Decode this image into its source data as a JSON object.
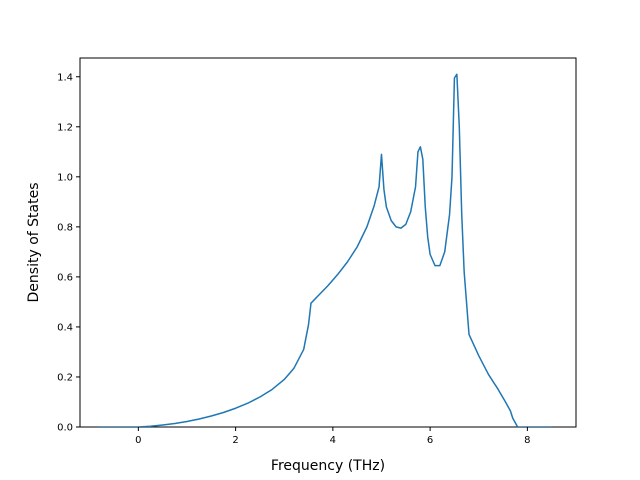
{
  "chart_data": {
    "type": "line",
    "title": "",
    "xlabel": "Frequency (THz)",
    "ylabel": "Density of States",
    "xlim": [
      -1.2,
      9.0
    ],
    "ylim": [
      0.0,
      1.475
    ],
    "xticks": [
      0,
      2,
      4,
      6,
      8
    ],
    "xtick_labels": [
      "0",
      "2",
      "4",
      "6",
      "8"
    ],
    "yticks": [
      0.0,
      0.2,
      0.4,
      0.6,
      0.8,
      1.0,
      1.2,
      1.4
    ],
    "ytick_labels": [
      "0.0",
      "0.2",
      "0.4",
      "0.6",
      "0.8",
      "1.0",
      "1.2",
      "1.4"
    ],
    "grid": false,
    "legend": "none",
    "series": [
      {
        "color": "#1f77b4",
        "x": [
          -0.8,
          -0.4,
          0.0,
          0.25,
          0.5,
          0.75,
          1.0,
          1.25,
          1.5,
          1.75,
          2.0,
          2.25,
          2.5,
          2.75,
          3.0,
          3.2,
          3.4,
          3.5,
          3.55,
          3.7,
          3.9,
          4.1,
          4.3,
          4.5,
          4.7,
          4.85,
          4.95,
          5.0,
          5.05,
          5.1,
          5.2,
          5.3,
          5.4,
          5.5,
          5.6,
          5.7,
          5.75,
          5.8,
          5.85,
          5.9,
          5.95,
          6.0,
          6.1,
          6.2,
          6.3,
          6.4,
          6.45,
          6.5,
          6.55,
          6.6,
          6.65,
          6.7,
          6.8,
          7.0,
          7.2,
          7.4,
          7.55,
          7.65,
          7.7,
          7.8,
          8.1,
          8.5
        ],
        "y": [
          0.0,
          0.0,
          0.0,
          0.003,
          0.008,
          0.014,
          0.022,
          0.032,
          0.044,
          0.058,
          0.075,
          0.095,
          0.12,
          0.15,
          0.19,
          0.235,
          0.31,
          0.41,
          0.495,
          0.525,
          0.565,
          0.61,
          0.66,
          0.72,
          0.8,
          0.885,
          0.96,
          1.09,
          0.95,
          0.88,
          0.825,
          0.8,
          0.795,
          0.81,
          0.86,
          0.96,
          1.1,
          1.12,
          1.07,
          0.88,
          0.76,
          0.69,
          0.645,
          0.645,
          0.7,
          0.85,
          1.0,
          1.395,
          1.41,
          1.2,
          0.85,
          0.62,
          0.37,
          0.285,
          0.21,
          0.15,
          0.1,
          0.065,
          0.035,
          0.0,
          0.0,
          0.0
        ]
      }
    ]
  }
}
